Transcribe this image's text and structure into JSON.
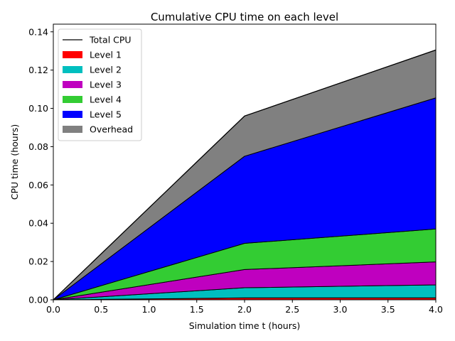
{
  "chart_data": {
    "type": "area",
    "stacked": true,
    "title": "Cumulative CPU time on each level",
    "xlabel": "Simulation time t (hours)",
    "ylabel": "CPU time (hours)",
    "x": [
      0,
      2,
      4
    ],
    "xlim": [
      0,
      4
    ],
    "ylim": [
      0,
      0.144
    ],
    "xticks": [
      0,
      0.5,
      1,
      1.5,
      2,
      2.5,
      3,
      3.5,
      4
    ],
    "xtick_labels": [
      "0.0",
      "0.5",
      "1.0",
      "1.5",
      "2.0",
      "2.5",
      "3.0",
      "3.5",
      "4.0"
    ],
    "yticks": [
      0,
      0.02,
      0.04,
      0.06,
      0.08,
      0.1,
      0.12,
      0.14
    ],
    "ytick_labels": [
      "0.00",
      "0.02",
      "0.04",
      "0.06",
      "0.08",
      "0.10",
      "0.12",
      "0.14"
    ],
    "grid": false,
    "legend_position": "top-left",
    "total_line": {
      "name": "Total CPU",
      "color": "#000000",
      "values": [
        0,
        0.096,
        0.1305
      ]
    },
    "series": [
      {
        "name": "Level 1",
        "color": "#ff0000",
        "values": [
          0,
          0.001,
          0.001
        ]
      },
      {
        "name": "Level 2",
        "color": "#00bfbf",
        "values": [
          0,
          0.0053,
          0.0068
        ]
      },
      {
        "name": "Level 3",
        "color": "#bf00bf",
        "values": [
          0,
          0.0095,
          0.012
        ]
      },
      {
        "name": "Level 4",
        "color": "#33cc33",
        "values": [
          0,
          0.0137,
          0.0172
        ]
      },
      {
        "name": "Level 5",
        "color": "#0000ff",
        "values": [
          0,
          0.0455,
          0.0685
        ]
      },
      {
        "name": "Overhead",
        "color": "#808080",
        "values": [
          0,
          0.021,
          0.025
        ]
      }
    ]
  }
}
